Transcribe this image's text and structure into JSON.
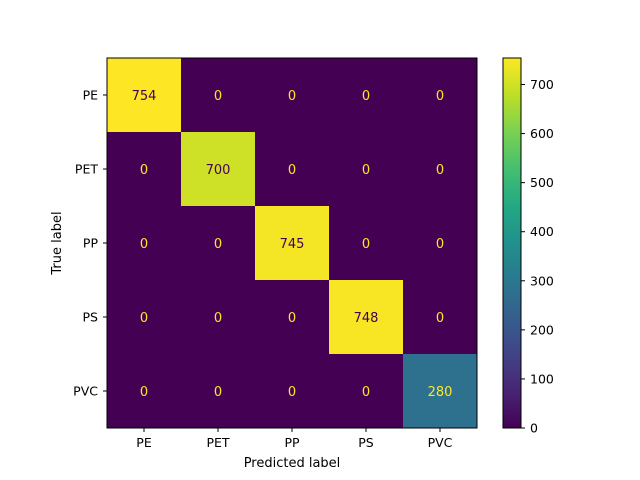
{
  "chart_data": {
    "type": "heatmap",
    "title": "",
    "xlabel": "Predicted label",
    "ylabel": "True label",
    "x_categories": [
      "PE",
      "PET",
      "PP",
      "PS",
      "PVC"
    ],
    "y_categories": [
      "PE",
      "PET",
      "PP",
      "PS",
      "PVC"
    ],
    "values": [
      [
        754,
        0,
        0,
        0,
        0
      ],
      [
        0,
        700,
        0,
        0,
        0
      ],
      [
        0,
        0,
        745,
        0,
        0
      ],
      [
        0,
        0,
        0,
        748,
        0
      ],
      [
        0,
        0,
        0,
        0,
        280
      ]
    ],
    "colormap": "viridis",
    "vmin": 0,
    "vmax": 754,
    "colorbar_ticks": [
      0,
      100,
      200,
      300,
      400,
      500,
      600,
      700
    ],
    "grid": false,
    "text_color_low": "#fde725",
    "text_color_high": "#440154"
  }
}
